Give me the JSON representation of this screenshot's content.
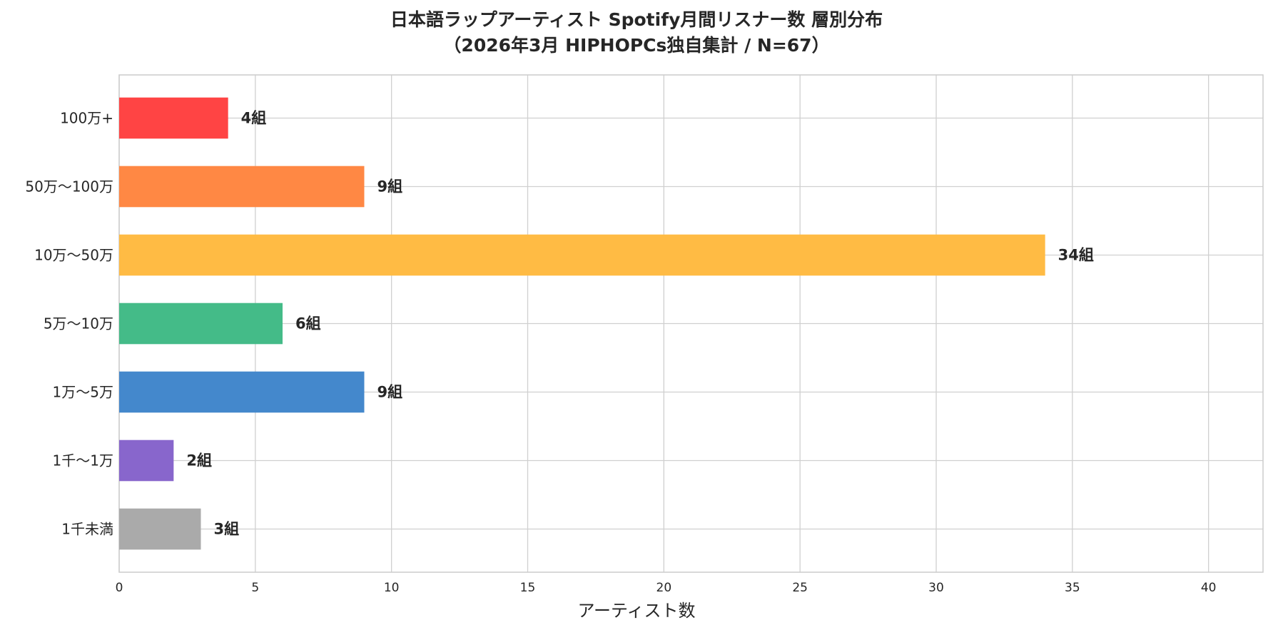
{
  "chart_data": {
    "type": "bar",
    "orientation": "horizontal",
    "title": "日本語ラップアーティスト Spotify月間リスナー数 層別分布",
    "subtitle": "（2026年3月 HIPHOPCs独自集計 / N=67）",
    "xlabel": "アーティスト数",
    "ylabel": "",
    "categories": [
      "100万+",
      "50万〜100万",
      "10万〜50万",
      "5万〜10万",
      "1万〜5万",
      "1千〜1万",
      "1千未満"
    ],
    "values": [
      4,
      9,
      34,
      6,
      9,
      2,
      3
    ],
    "data_labels": [
      "4組",
      "9組",
      "34組",
      "6組",
      "9組",
      "2組",
      "3組"
    ],
    "colors": [
      "#ff4444",
      "#ff8844",
      "#ffbb44",
      "#44bb88",
      "#4488cc",
      "#8866cc",
      "#aaaaaa"
    ],
    "xlim": [
      0,
      42
    ],
    "xticks": [
      0,
      5,
      10,
      15,
      20,
      25,
      30,
      35,
      40
    ],
    "grid": true,
    "legend": "none"
  }
}
